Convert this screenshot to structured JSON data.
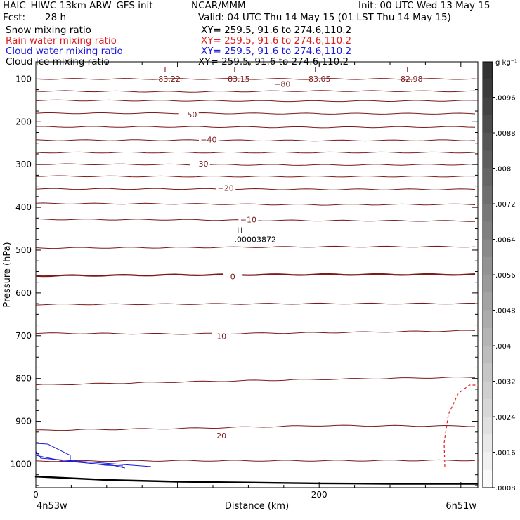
{
  "header": {
    "model": "HAIC–HIWC 13km ARW–GFS init",
    "org": "NCAR/MMM",
    "init": "Init: 00 UTC Wed 13 May 15",
    "fcst_label": "Fcst:",
    "fcst_value": "28 h",
    "valid": "Valid: 04 UTC Thu 14 May 15 (01 LST Thu 14 May 15)"
  },
  "fields": [
    {
      "name": "Snow mixing ratio",
      "xy": "XY= 259.5, 91.6 to 274.6,110.2",
      "color": "#000000"
    },
    {
      "name": "Rain water mixing ratio",
      "xy": "XY= 259.5, 91.6 to 274.6,110.2",
      "color": "#e02020"
    },
    {
      "name": "Cloud water mixing ratio",
      "xy": "XY= 259.5, 91.6 to 274.6,110.2",
      "color": "#1a1adc"
    },
    {
      "name": "Cloud ice mixing ratio",
      "xy": "XY= 259.5, 91.6 to 274.6,110.2",
      "color": "#000000"
    }
  ],
  "chart_data": {
    "type": "line",
    "xlabel": "Distance (km)",
    "ylabel": "Pressure (hPa)",
    "xlim": [
      0,
      312
    ],
    "ylim": [
      1055,
      60
    ],
    "x_ticks": [
      0,
      200
    ],
    "y_ticks": [
      100,
      200,
      300,
      400,
      500,
      600,
      700,
      800,
      900,
      1000
    ],
    "x_endpoint_labels": [
      "4n53w",
      "6n51w"
    ],
    "contour_color": "#7a1a1a",
    "contour_labels": [
      {
        "text": "−80",
        "x": 174,
        "p": 113
      },
      {
        "text": "−50",
        "x": 108,
        "p": 185
      },
      {
        "text": "−40",
        "x": 122,
        "p": 243
      },
      {
        "text": "−30",
        "x": 116,
        "p": 300
      },
      {
        "text": "−20",
        "x": 134,
        "p": 356
      },
      {
        "text": "−10",
        "x": 150,
        "p": 430
      },
      {
        "text": "0",
        "x": 139,
        "p": 563
      },
      {
        "text": "10",
        "x": 131,
        "p": 703
      },
      {
        "text": "20",
        "x": 131,
        "p": 935
      }
    ],
    "extrema": [
      {
        "type": "L",
        "value": "−83.22",
        "x": 92,
        "p": 85
      },
      {
        "type": "L",
        "value": "−83.15",
        "x": 141,
        "p": 85
      },
      {
        "type": "L",
        "value": "−83.05",
        "x": 198,
        "p": 85
      },
      {
        "type": "L",
        "value": "−82.98",
        "x": 263,
        "p": 85
      },
      {
        "type": "H",
        "value": ".00003872",
        "x": 144,
        "p": 460
      }
    ],
    "temperature_isotherms": [
      {
        "p": [
          100,
          100,
          100,
          100
        ]
      },
      {
        "p": [
          128,
          130,
          128,
          129
        ]
      },
      {
        "p": [
          150,
          151,
          152,
          151
        ]
      },
      {
        "p": [
          180,
          180,
          181,
          181
        ]
      },
      {
        "p": [
          212,
          212,
          213,
          212
        ]
      },
      {
        "p": [
          243,
          243,
          244,
          243
        ]
      },
      {
        "p": [
          272,
          272,
          272,
          272
        ]
      },
      {
        "p": [
          299,
          300,
          301,
          300
        ]
      },
      {
        "p": [
          327,
          328,
          328,
          328
        ]
      },
      {
        "p": [
          357,
          357,
          358,
          358
        ]
      },
      {
        "p": [
          391,
          392,
          394,
          393
        ]
      },
      {
        "p": [
          428,
          429,
          431,
          432
        ]
      },
      {
        "p": [
          495,
          494,
          492,
          492
        ]
      },
      {
        "p": [
          560,
          558,
          557,
          557
        ]
      },
      {
        "p": [
          627,
          626,
          625,
          625
        ]
      },
      {
        "p": [
          694,
          696,
          693,
          688
        ]
      },
      {
        "p": [
          815,
          808,
          802,
          797
        ]
      },
      {
        "p": [
          921,
          917,
          910,
          911
        ]
      },
      {
        "p": [
          993,
          992,
          992,
          991
        ]
      }
    ],
    "isotherm_x": [
      0,
      100,
      200,
      310
    ],
    "colorbar": {
      "unit": "g kg⁻¹",
      "labels": [
        ".0096",
        ".0088",
        ".008",
        ".0072",
        ".0064",
        ".0056",
        ".0048",
        ".004",
        ".0032",
        ".0024",
        ".0016",
        ".0008"
      ]
    }
  }
}
